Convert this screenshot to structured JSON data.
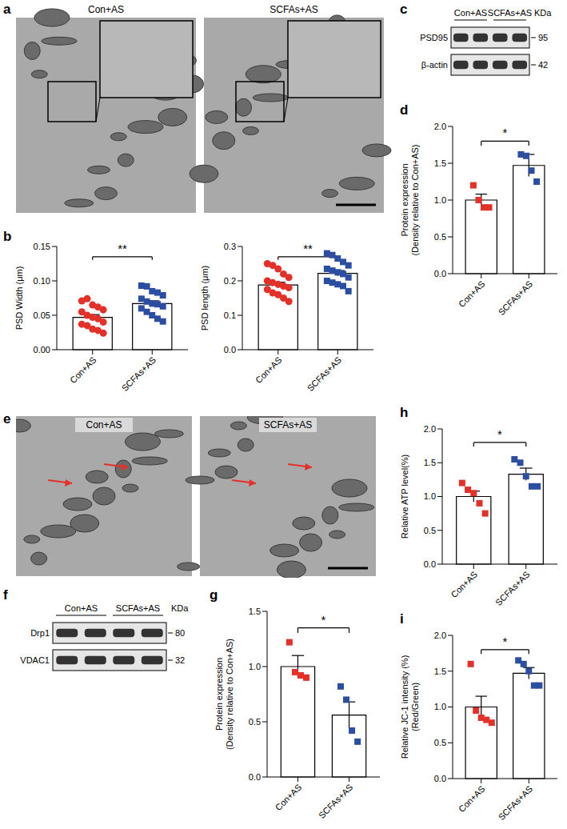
{
  "chart_data": [
    {
      "type": "bar",
      "panel": "b",
      "y_label": [
        "PSD Width (μm)"
      ],
      "categories": [
        "Con+AS",
        "SCFAs+AS"
      ],
      "values": [
        0.047,
        0.067
      ],
      "error": [
        0.004,
        0.004
      ],
      "color": "#ffffff",
      "points": [
        {
          "category": "Con+AS",
          "color": "#e3312a",
          "marker": "circle",
          "values": [
            0.071,
            0.074,
            0.065,
            0.062,
            0.058,
            0.055,
            0.05,
            0.047,
            0.045,
            0.04,
            0.037,
            0.035,
            0.03,
            0.028,
            0.024
          ]
        },
        {
          "category": "SCFAs+AS",
          "color": "#2b4ea2",
          "marker": "square",
          "values": [
            0.093,
            0.092,
            0.085,
            0.083,
            0.079,
            0.074,
            0.07,
            0.067,
            0.066,
            0.063,
            0.06,
            0.055,
            0.05,
            0.045,
            0.041
          ]
        }
      ],
      "ylim": [
        0,
        0.15
      ],
      "yticks": [
        {
          "value": 0,
          "label": "0.00"
        },
        0.05,
        {
          "value": 0.1,
          "label": "0.10"
        },
        0.15
      ],
      "annotations": [
        {
          "text": "**"
        }
      ]
    },
    {
      "type": "bar",
      "y_label": [
        "PSD length (μm)"
      ],
      "categories": [
        "Con+AS",
        "SCFAs+AS"
      ],
      "values": [
        0.188,
        0.222
      ],
      "error": [
        0.008,
        0.008
      ],
      "color": "#ffffff",
      "points": [
        {
          "category": "Con+AS",
          "color": "#e3312a",
          "marker": "circle",
          "values": [
            0.25,
            0.245,
            0.235,
            0.22,
            0.21,
            0.2,
            0.195,
            0.19,
            0.185,
            0.18,
            0.175,
            0.165,
            0.16,
            0.15,
            0.14
          ]
        },
        {
          "category": "SCFAs+AS",
          "color": "#2b4ea2",
          "marker": "square",
          "values": [
            0.28,
            0.275,
            0.265,
            0.255,
            0.245,
            0.235,
            0.23,
            0.225,
            0.22,
            0.21,
            0.2,
            0.195,
            0.19,
            0.185,
            0.17
          ]
        }
      ],
      "ylim": [
        0,
        0.3
      ],
      "yticks": [
        {
          "value": 0,
          "label": "0.0"
        },
        0.1,
        0.2,
        0.3
      ],
      "annotations": [
        {
          "text": "**"
        }
      ]
    },
    {
      "type": "bar",
      "panel": "d",
      "y_label": [
        "Protein expression",
        "(Density relative to Con+AS)"
      ],
      "categories": [
        "Con+AS",
        "SCFAs+AS"
      ],
      "values": [
        1.0,
        1.47
      ],
      "error": [
        0.08,
        0.15
      ],
      "color": "#ffffff",
      "points": [
        {
          "category": "Con+AS",
          "color": "#e3312a",
          "marker": "square",
          "values": [
            1.2,
            1.0,
            0.9,
            0.9
          ]
        },
        {
          "category": "SCFAs+AS",
          "color": "#2b4ea2",
          "marker": "square",
          "values": [
            1.62,
            1.6,
            1.4,
            1.25
          ]
        }
      ],
      "ylim": [
        0,
        2
      ],
      "yticks": [
        {
          "value": 0,
          "label": "0.0"
        },
        0.5,
        {
          "value": 1,
          "label": "1.0"
        },
        1.5,
        {
          "value": 2,
          "label": "2.0"
        }
      ],
      "annotations": [
        {
          "text": "*"
        }
      ]
    },
    {
      "type": "bar",
      "panel": "h",
      "y_label": [
        "Relative ATP level(%)"
      ],
      "categories": [
        "Con+AS",
        "SCFAs+AS"
      ],
      "values": [
        1.0,
        1.33
      ],
      "error": [
        0.08,
        0.09
      ],
      "color": "#ffffff",
      "points": [
        {
          "category": "Con+AS",
          "color": "#e3312a",
          "marker": "square",
          "values": [
            1.2,
            1.1,
            1.05,
            0.9,
            0.75
          ]
        },
        {
          "category": "SCFAs+AS",
          "color": "#2b4ea2",
          "marker": "square",
          "values": [
            1.55,
            1.5,
            1.3,
            1.15,
            1.15
          ]
        }
      ],
      "ylim": [
        0,
        2
      ],
      "yticks": [
        {
          "value": 0,
          "label": "0.0"
        },
        0.5,
        {
          "value": 1,
          "label": "1.0"
        },
        1.5,
        {
          "value": 2,
          "label": "2.0"
        }
      ],
      "annotations": [
        {
          "text": "*"
        }
      ]
    },
    {
      "type": "bar",
      "panel": "g",
      "y_label": [
        "Protein expression",
        "(Density relative to Con+AS)"
      ],
      "categories": [
        "Con+AS",
        "SCFAs+AS"
      ],
      "values": [
        1.0,
        0.56
      ],
      "error": [
        0.1,
        0.12
      ],
      "color": "#ffffff",
      "points": [
        {
          "category": "Con+AS",
          "color": "#e3312a",
          "marker": "square",
          "values": [
            1.22,
            0.95,
            0.92,
            0.9
          ]
        },
        {
          "category": "SCFAs+AS",
          "color": "#2b4ea2",
          "marker": "square",
          "values": [
            0.82,
            0.7,
            0.42,
            0.32
          ]
        }
      ],
      "ylim": [
        0,
        1.5
      ],
      "yticks": [
        {
          "value": 0,
          "label": "0.0"
        },
        0.5,
        {
          "value": 1,
          "label": "1.0"
        },
        1.5
      ],
      "annotations": [
        {
          "text": "*"
        }
      ]
    },
    {
      "type": "bar",
      "panel": "i",
      "y_label": [
        "Relative JC-1 intensity (%)",
        "(Red/Green)"
      ],
      "categories": [
        "Con+AS",
        "SCFAs+AS"
      ],
      "values": [
        1.0,
        1.47
      ],
      "error": [
        0.15,
        0.08
      ],
      "color": "#ffffff",
      "points": [
        {
          "category": "Con+AS",
          "color": "#e3312a",
          "marker": "square",
          "values": [
            1.6,
            0.95,
            0.85,
            0.82,
            0.78
          ]
        },
        {
          "category": "SCFAs+AS",
          "color": "#2b4ea2",
          "marker": "square",
          "values": [
            1.65,
            1.6,
            1.5,
            1.3,
            1.3
          ]
        }
      ],
      "ylim": [
        0,
        2
      ],
      "yticks": [
        {
          "value": 0,
          "label": "0.0"
        },
        0.5,
        {
          "value": 1,
          "label": "1.0"
        },
        1.5,
        {
          "value": 2,
          "label": "2.0"
        }
      ],
      "annotations": [
        {
          "text": "*"
        }
      ]
    }
  ],
  "images": [
    {
      "panel": "a",
      "labels": [
        "Con+AS",
        "SCFAs+AS"
      ]
    },
    {
      "panel": "e",
      "labels": [
        "Con+AS",
        "SCFAs+AS"
      ]
    }
  ],
  "blots": [
    {
      "panel": "c",
      "groups": [
        "Con+AS",
        "SCFAs+AS"
      ],
      "unit": "KDa",
      "rows": [
        {
          "name": "PSD95",
          "kda": 95
        },
        {
          "name": "β-actin",
          "kda": 42
        }
      ]
    },
    {
      "panel": "f",
      "groups": [
        "Con+AS",
        "SCFAs+AS"
      ],
      "unit": "KDa",
      "rows": [
        {
          "name": "Drp1",
          "kda": 80
        },
        {
          "name": "VDAC1",
          "kda": 32
        }
      ]
    }
  ]
}
